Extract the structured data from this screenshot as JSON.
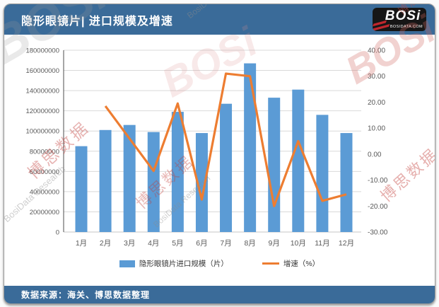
{
  "header": {
    "title": "隐形眼镜片| 进口规模及增速",
    "logo": {
      "text": "BOSi",
      "sub": "BOSIDATA.COM"
    }
  },
  "footer": {
    "source": "数据来源：海关、博思数据整理"
  },
  "colors": {
    "header_bar": "#3A6B99",
    "bar": "#5B9BD5",
    "line": "#ED7D31",
    "grid": "#D9D9D9",
    "axis_text": "#595959"
  },
  "chart_data": {
    "type": "bar",
    "subtype": "combo-bar-line",
    "categories": [
      "1月",
      "2月",
      "3月",
      "4月",
      "5月",
      "6月",
      "7月",
      "8月",
      "9月",
      "10月",
      "11月",
      "12月"
    ],
    "series": [
      {
        "name": "隐形眼镜片进口规模（片）",
        "type": "bar",
        "axis": "left",
        "color": "#5B9BD5",
        "values": [
          85000000,
          101000000,
          106000000,
          99000000,
          119000000,
          98000000,
          127000000,
          167000000,
          133000000,
          141000000,
          116000000,
          98000000
        ]
      },
      {
        "name": "增速（%）",
        "type": "line",
        "axis": "right",
        "color": "#ED7D31",
        "values": [
          null,
          18.5,
          6,
          -6.5,
          19.5,
          -17.5,
          31,
          30,
          -20,
          5,
          -18,
          -15.5
        ]
      }
    ],
    "left_axis": {
      "min": 0,
      "max": 180000000,
      "step": 20000000
    },
    "right_axis": {
      "min": -30,
      "max": 40,
      "step": 10,
      "decimals": 2
    },
    "grid": true,
    "legend_position": "bottom",
    "title": "隐形眼镜片| 进口规模及增速"
  },
  "watermarks": [
    {
      "text": "BOSi"
    },
    {
      "text": "博思数据"
    },
    {
      "text": "BosiData Research"
    },
    {
      "text": "BOSi"
    },
    {
      "text": "BosiData Research"
    },
    {
      "text": "博思数据"
    },
    {
      "text": "BosiData Research"
    },
    {
      "text": "BOSi"
    },
    {
      "text": "博思数据"
    },
    {
      "text": "博思数据"
    }
  ]
}
